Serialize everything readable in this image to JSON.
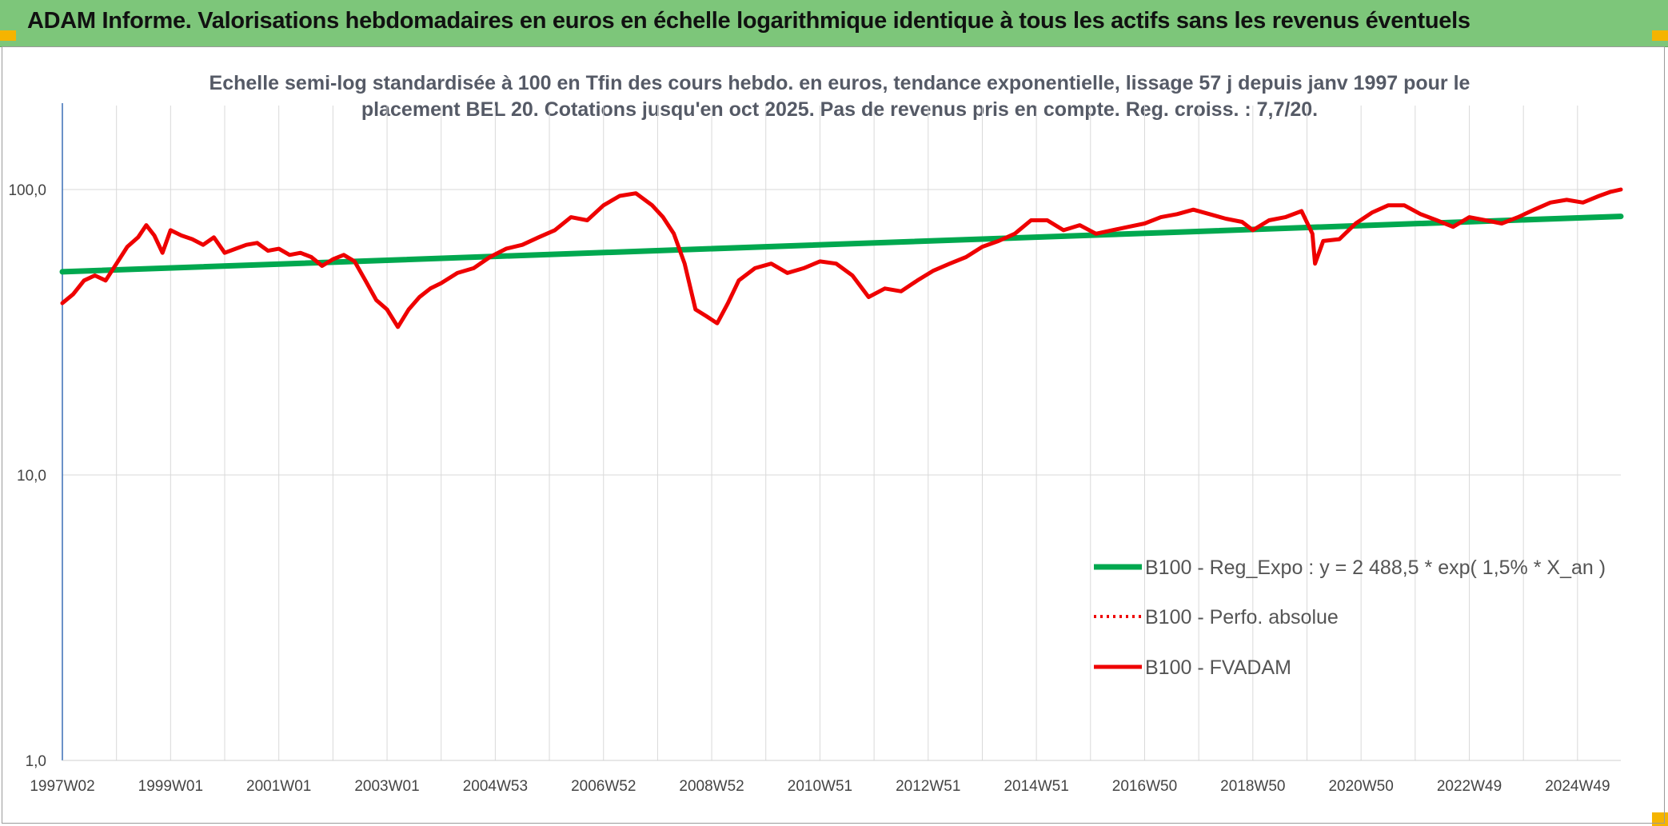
{
  "header": {
    "title": "ADAM Informe. Valorisations hebdomadaires en euros en échelle logarithmique identique à tous les actifs sans les revenus éventuels"
  },
  "colors": {
    "header_bg": "#7dc67a",
    "corner": "#f5b400",
    "trend": "#00a84f",
    "fvadam": "#ee0000",
    "perf": "#ee0000"
  },
  "chart_data": {
    "type": "line",
    "title_line1": "Echelle semi-log standardisée à 100 en Tfin des cours hebdo. en euros, tendance exponentielle, lissage 57 j depuis janv 1997 pour le",
    "title_line2": "placement BEL 20. Cotations jusqu'en oct 2025. Pas de revenus pris en compte. Reg. croiss. : 7,7/20.",
    "y_scale": "log",
    "ylim": [
      1,
      100
    ],
    "y_ticks": [
      {
        "value": 1,
        "label": "1,0"
      },
      {
        "value": 10,
        "label": "10,0"
      },
      {
        "value": 100,
        "label": "100,0"
      }
    ],
    "xlim": [
      1997.0,
      2025.8
    ],
    "x_ticks": [
      {
        "value": 1997.0,
        "label": "1997W02"
      },
      {
        "value": 1999.0,
        "label": "1999W01"
      },
      {
        "value": 2001.0,
        "label": "2001W01"
      },
      {
        "value": 2003.0,
        "label": "2003W01"
      },
      {
        "value": 2005.0,
        "label": "2004W53"
      },
      {
        "value": 2007.0,
        "label": "2006W52"
      },
      {
        "value": 2009.0,
        "label": "2008W52"
      },
      {
        "value": 2011.0,
        "label": "2010W51"
      },
      {
        "value": 2013.0,
        "label": "2012W51"
      },
      {
        "value": 2015.0,
        "label": "2014W51"
      },
      {
        "value": 2017.0,
        "label": "2016W50"
      },
      {
        "value": 2019.0,
        "label": "2018W50"
      },
      {
        "value": 2021.0,
        "label": "2020W50"
      },
      {
        "value": 2023.0,
        "label": "2022W49"
      },
      {
        "value": 2025.0,
        "label": "2024W49"
      }
    ],
    "grid": true,
    "legend_position": "bottom-right",
    "series": [
      {
        "name": "B100 - Reg_Expo : y = 2 488,5 * exp( 1,5% *  X_an )",
        "style": "solid-thick",
        "color": "#00a84f",
        "x": [
          1997.0,
          2025.8
        ],
        "y": [
          51.5,
          80.5
        ]
      },
      {
        "name": "B100 - Perfo. absolue",
        "style": "dotted",
        "color": "#ee0000",
        "x": [],
        "y": []
      },
      {
        "name": "B100 - FVADAM",
        "style": "solid",
        "color": "#ee0000",
        "x": [
          1997.0,
          1997.2,
          1997.4,
          1997.6,
          1997.8,
          1998.0,
          1998.2,
          1998.4,
          1998.55,
          1998.7,
          1998.85,
          1999.0,
          1999.2,
          1999.4,
          1999.6,
          1999.8,
          2000.0,
          2000.2,
          2000.4,
          2000.6,
          2000.8,
          2001.0,
          2001.2,
          2001.4,
          2001.6,
          2001.8,
          2002.0,
          2002.2,
          2002.4,
          2002.6,
          2002.8,
          2003.0,
          2003.2,
          2003.4,
          2003.6,
          2003.8,
          2004.0,
          2004.3,
          2004.6,
          2004.9,
          2005.2,
          2005.5,
          2005.8,
          2006.1,
          2006.4,
          2006.7,
          2007.0,
          2007.3,
          2007.6,
          2007.9,
          2008.1,
          2008.3,
          2008.5,
          2008.7,
          2008.9,
          2009.1,
          2009.3,
          2009.5,
          2009.8,
          2010.1,
          2010.4,
          2010.7,
          2011.0,
          2011.3,
          2011.6,
          2011.9,
          2012.2,
          2012.5,
          2012.8,
          2013.1,
          2013.4,
          2013.7,
          2014.0,
          2014.3,
          2014.6,
          2014.9,
          2015.2,
          2015.5,
          2015.8,
          2016.1,
          2016.4,
          2016.7,
          2017.0,
          2017.3,
          2017.6,
          2017.9,
          2018.2,
          2018.5,
          2018.8,
          2019.0,
          2019.3,
          2019.6,
          2019.9,
          2020.1,
          2020.15,
          2020.3,
          2020.6,
          2020.9,
          2021.2,
          2021.5,
          2021.8,
          2022.1,
          2022.4,
          2022.7,
          2023.0,
          2023.3,
          2023.6,
          2023.9,
          2024.2,
          2024.5,
          2024.8,
          2025.1,
          2025.4,
          2025.6,
          2025.8
        ],
        "y": [
          40,
          43,
          48,
          50,
          48,
          55,
          63,
          68,
          75,
          69,
          60,
          72,
          69,
          67,
          64,
          68,
          60,
          62,
          64,
          65,
          61,
          62,
          59,
          60,
          58,
          54,
          57,
          59,
          56,
          48,
          41,
          38,
          33,
          38,
          42,
          45,
          47,
          51,
          53,
          58,
          62,
          64,
          68,
          72,
          80,
          78,
          88,
          95,
          97,
          88,
          80,
          70,
          55,
          38,
          36,
          34,
          40,
          48,
          53,
          55,
          51,
          53,
          56,
          55,
          50,
          42,
          45,
          44,
          48,
          52,
          55,
          58,
          63,
          66,
          70,
          78,
          78,
          72,
          75,
          70,
          72,
          74,
          76,
          80,
          82,
          85,
          82,
          79,
          77,
          72,
          78,
          80,
          84,
          70,
          55,
          66,
          67,
          76,
          83,
          88,
          88,
          82,
          78,
          74,
          80,
          78,
          76,
          80,
          85,
          90,
          92,
          90,
          95,
          98,
          100
        ]
      }
    ]
  }
}
